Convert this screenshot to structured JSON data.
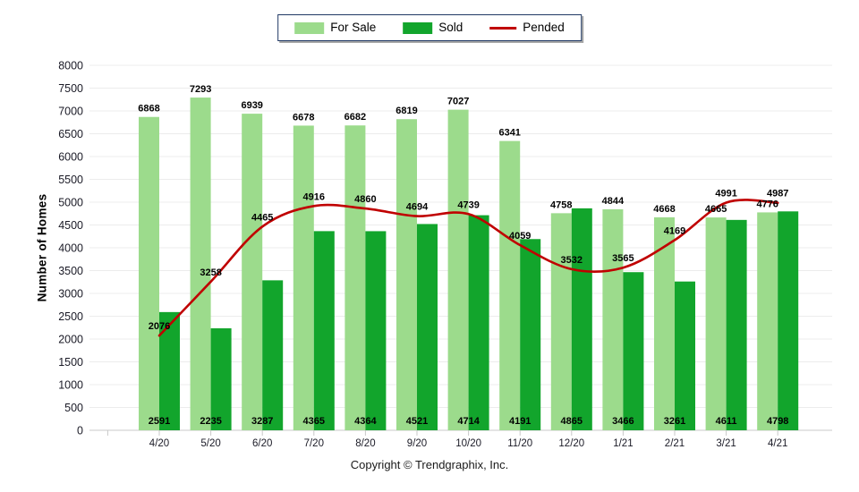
{
  "footer": {
    "copyright": "Copyright © Trendgraphix, Inc."
  },
  "chart_data": {
    "type": "bar",
    "subtype": "grouped-bar-with-line-overlay",
    "title": "",
    "xlabel": "",
    "ylabel": "Number of Homes",
    "ylim": [
      0,
      8000
    ],
    "ytick_step": 500,
    "grid": true,
    "legend_position": "top-center",
    "categories": [
      "4/20",
      "5/20",
      "6/20",
      "7/20",
      "8/20",
      "9/20",
      "10/20",
      "11/20",
      "12/20",
      "1/21",
      "2/21",
      "3/21",
      "4/21"
    ],
    "series": [
      {
        "name": "For Sale",
        "type": "bar",
        "color": "#9cdb8c",
        "values": [
          6868,
          7293,
          6939,
          6678,
          6682,
          6819,
          7027,
          6341,
          4758,
          4844,
          4668,
          4665,
          4776
        ]
      },
      {
        "name": "Sold",
        "type": "bar",
        "color": "#12a52c",
        "values": [
          2591,
          2235,
          3287,
          4365,
          4364,
          4521,
          4714,
          4191,
          4865,
          3466,
          3261,
          4611,
          4798
        ]
      },
      {
        "name": "Pended",
        "type": "line",
        "color": "#c00000",
        "values": [
          2076,
          3258,
          4465,
          4916,
          4860,
          4694,
          4739,
          4059,
          3532,
          3565,
          4169,
          4991,
          4987
        ]
      }
    ],
    "colors": {
      "gridline": "#ececec",
      "axis_line": "#c9c9c9",
      "tick_text": "#1a1a26",
      "data_label": "#000000"
    }
  }
}
